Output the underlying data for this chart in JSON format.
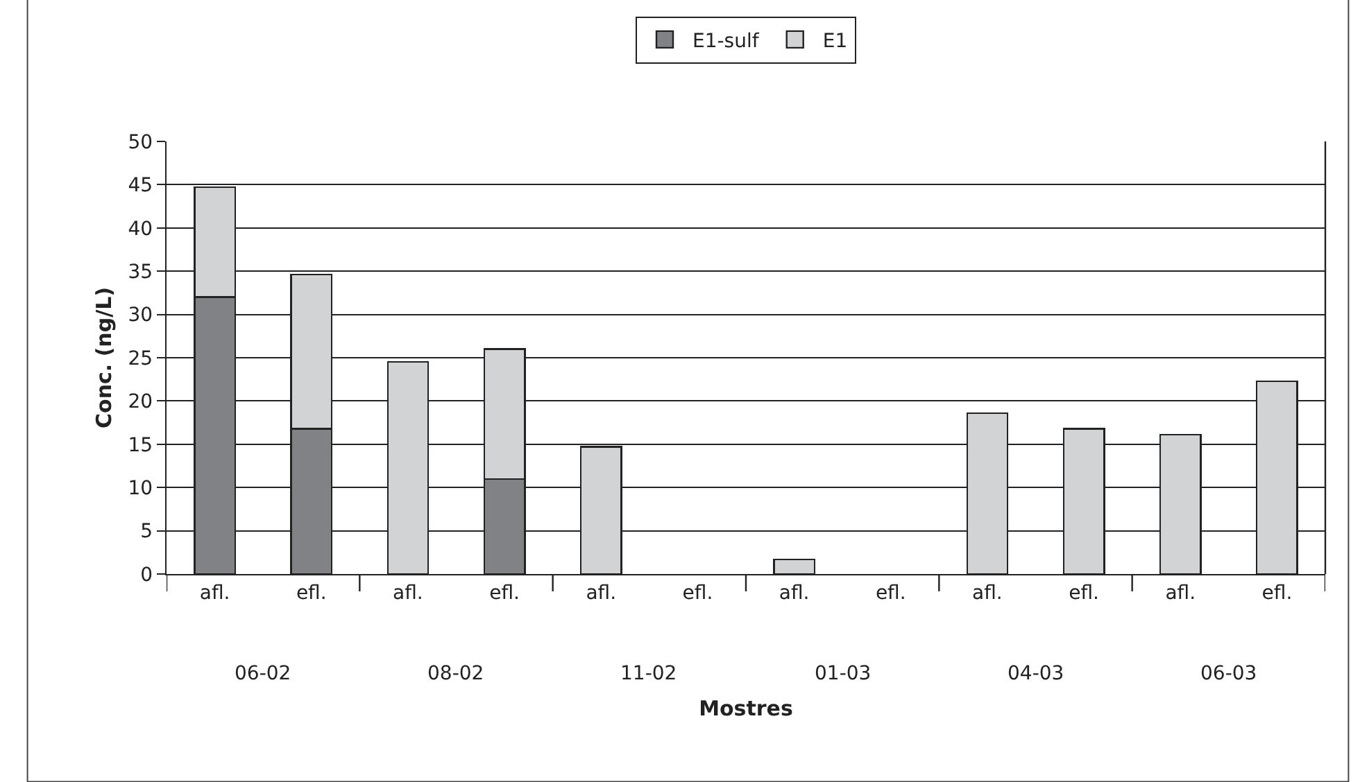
{
  "chart_data": {
    "type": "bar",
    "stacked": true,
    "xlabel": "Mostres",
    "ylabel": "Conc. (ng/L)",
    "categories": [
      "afl.",
      "efl.",
      "afl.",
      "efl.",
      "afl.",
      "efl.",
      "afl.",
      "efl.",
      "afl.",
      "efl.",
      "afl.",
      "efl."
    ],
    "series": [
      {
        "name": "E1-sulf",
        "color": "#808285",
        "values": [
          32,
          16.8,
          null,
          11,
          null,
          null,
          null,
          null,
          null,
          null,
          null,
          null
        ]
      },
      {
        "name": "E1",
        "color": "#d1d3d4",
        "values": [
          12.7,
          17.8,
          24.5,
          15,
          14.7,
          null,
          1.7,
          null,
          18.6,
          16.8,
          16.1,
          22.3
        ]
      }
    ],
    "annotations": [
      "06-02",
      "08-02",
      "11-02",
      "01-03",
      "04-03",
      "06-03"
    ],
    "ylim": [
      0,
      50
    ],
    "yticks": [
      0,
      5,
      10,
      15,
      20,
      25,
      30,
      35,
      40,
      45,
      50
    ],
    "grid": "y",
    "legend": "top"
  }
}
